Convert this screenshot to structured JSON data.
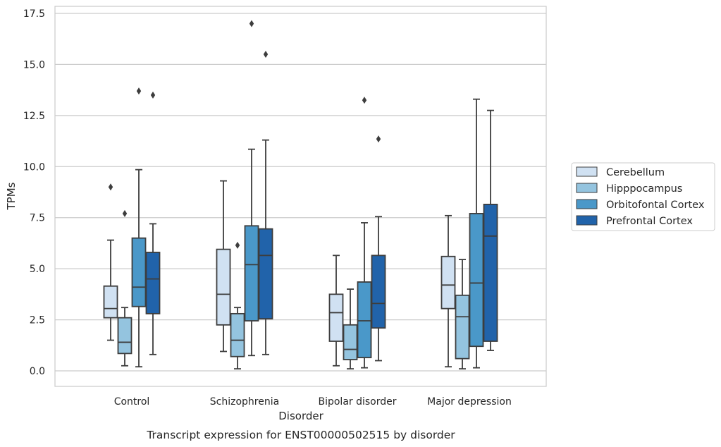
{
  "chart_data": {
    "type": "box",
    "title": "",
    "caption": "Transcript expression for ENST00000502515 by disorder",
    "xlabel": "Disorder",
    "ylabel": "TPMs",
    "ylim": [
      -0.7,
      17.8
    ],
    "yticks": [
      "0.0",
      "2.5",
      "5.0",
      "7.5",
      "10.0",
      "12.5",
      "15.0",
      "17.5"
    ],
    "grid": "horizontal",
    "legend_position": "right",
    "categories": [
      "Control",
      "Schizophrenia",
      "Bipolar disorder",
      "Major depression"
    ],
    "series": [
      {
        "name": "Cerebellum",
        "color": "#d0e1f2",
        "boxes": [
          {
            "whislo": 1.5,
            "q1": 2.6,
            "med": 3.05,
            "q3": 4.15,
            "whishi": 6.4,
            "fliers": [
              9.0
            ]
          },
          {
            "whislo": 0.95,
            "q1": 2.25,
            "med": 3.75,
            "q3": 5.95,
            "whishi": 9.3,
            "fliers": []
          },
          {
            "whislo": 0.25,
            "q1": 1.45,
            "med": 2.85,
            "q3": 3.75,
            "whishi": 5.65,
            "fliers": []
          },
          {
            "whislo": 0.2,
            "q1": 3.05,
            "med": 4.2,
            "q3": 5.6,
            "whishi": 7.6,
            "fliers": []
          }
        ]
      },
      {
        "name": "Hipppocampus",
        "color": "#94c4df",
        "boxes": [
          {
            "whislo": 0.25,
            "q1": 0.85,
            "med": 1.4,
            "q3": 2.6,
            "whishi": 3.1,
            "fliers": [
              7.7
            ]
          },
          {
            "whislo": 0.1,
            "q1": 0.7,
            "med": 1.5,
            "q3": 2.8,
            "whishi": 3.1,
            "fliers": [
              6.15
            ]
          },
          {
            "whislo": 0.1,
            "q1": 0.55,
            "med": 1.05,
            "q3": 2.25,
            "whishi": 4.0,
            "fliers": []
          },
          {
            "whislo": 0.1,
            "q1": 0.6,
            "med": 2.65,
            "q3": 3.7,
            "whishi": 5.45,
            "fliers": []
          }
        ]
      },
      {
        "name": "Orbitofontal Cortex",
        "color": "#4a98c9",
        "boxes": [
          {
            "whislo": 0.2,
            "q1": 3.15,
            "med": 4.1,
            "q3": 6.5,
            "whishi": 9.85,
            "fliers": [
              13.7
            ]
          },
          {
            "whislo": 0.75,
            "q1": 2.45,
            "med": 5.2,
            "q3": 7.1,
            "whishi": 10.85,
            "fliers": [
              17.0
            ]
          },
          {
            "whislo": 0.15,
            "q1": 0.65,
            "med": 2.45,
            "q3": 4.35,
            "whishi": 7.25,
            "fliers": [
              13.25
            ]
          },
          {
            "whislo": 0.15,
            "q1": 1.2,
            "med": 4.3,
            "q3": 7.7,
            "whishi": 13.3,
            "fliers": []
          }
        ]
      },
      {
        "name": "Prefrontal Cortex",
        "color": "#2163aa",
        "boxes": [
          {
            "whislo": 0.8,
            "q1": 2.8,
            "med": 4.5,
            "q3": 5.8,
            "whishi": 7.2,
            "fliers": [
              13.5
            ]
          },
          {
            "whislo": 0.8,
            "q1": 2.55,
            "med": 5.65,
            "q3": 6.95,
            "whishi": 11.3,
            "fliers": [
              15.5
            ]
          },
          {
            "whislo": 0.5,
            "q1": 2.1,
            "med": 3.3,
            "q3": 5.65,
            "whishi": 7.55,
            "fliers": [
              11.35
            ]
          },
          {
            "whislo": 1.0,
            "q1": 1.45,
            "med": 6.6,
            "q3": 8.15,
            "whishi": 12.75,
            "fliers": []
          }
        ]
      }
    ]
  }
}
